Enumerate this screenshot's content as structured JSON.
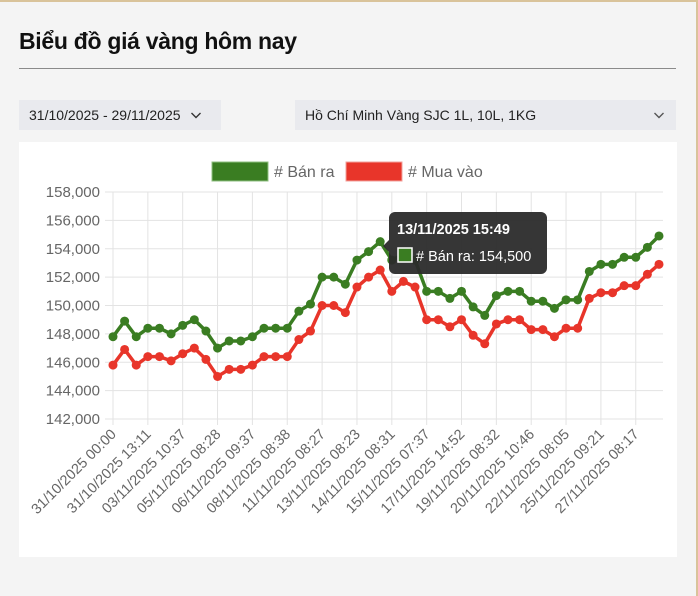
{
  "page": {
    "title": "Biểu đồ giá vàng hôm nay"
  },
  "filters": {
    "date_range": "31/10/2025 - 29/11/2025",
    "location_product": "Hồ Chí Minh Vàng SJC 1L, 10L, 1KG"
  },
  "icons": {
    "date_dropdown": "chevron-down-icon",
    "location_dropdown": "chevron-down-icon"
  },
  "colors": {
    "ban_ra": "#3a7d22",
    "mua_vao": "#e8352a",
    "tooltip_bg": "#2b2b2b",
    "grid": "#e3e3e3",
    "axis_text": "#666666"
  },
  "tooltip": {
    "title": "13/11/2025 15:49",
    "label": "# Bán ra: 154,500",
    "point_index": 23
  },
  "chart_data": {
    "type": "line",
    "title": "",
    "xlabel": "",
    "ylabel": "",
    "ylim": [
      142000,
      158000
    ],
    "y_ticks": [
      "158,000",
      "156,000",
      "154,000",
      "152,000",
      "150,000",
      "148,000",
      "146,000",
      "144,000",
      "142,000"
    ],
    "grid": true,
    "legend_position": "top",
    "x_tick_labels": [
      "31/10/2025 00:00",
      "31/10/2025 13:11",
      "03/11/2025 10:37",
      "05/11/2025 08:28",
      "06/11/2025 09:37",
      "08/11/2025 08:38",
      "11/11/2025 08:27",
      "13/11/2025 08:23",
      "14/11/2025 08:31",
      "15/11/2025 07:37",
      "17/11/2025 14:52",
      "19/11/2025 08:32",
      "20/11/2025 10:46",
      "22/11/2025 08:05",
      "25/11/2025 09:21",
      "27/11/2025 08:17"
    ],
    "x_tick_every": 3,
    "point_count": 48,
    "series": [
      {
        "name": "# Bán ra",
        "color": "#3a7d22",
        "values": [
          147800,
          148900,
          147800,
          148400,
          148400,
          148000,
          148600,
          149000,
          148200,
          147000,
          147500,
          147500,
          147800,
          148400,
          148400,
          148400,
          149600,
          150100,
          152000,
          152000,
          151500,
          153200,
          153800,
          154500,
          153200,
          153600,
          153200,
          151000,
          151000,
          150500,
          151000,
          149900,
          149300,
          150700,
          151000,
          151000,
          150300,
          150300,
          149800,
          150400,
          150400,
          152400,
          152900,
          152900,
          153400,
          153400,
          154100,
          154900
        ]
      },
      {
        "name": "# Mua vào",
        "color": "#e8352a",
        "values": [
          145800,
          146900,
          145800,
          146400,
          146400,
          146100,
          146600,
          147000,
          146200,
          145000,
          145500,
          145500,
          145800,
          146400,
          146400,
          146400,
          147600,
          148200,
          150000,
          150000,
          149500,
          151300,
          152000,
          152500,
          151000,
          151700,
          151300,
          149000,
          149000,
          148500,
          149000,
          147900,
          147300,
          148700,
          149000,
          149000,
          148300,
          148300,
          147800,
          148400,
          148400,
          150500,
          150900,
          150900,
          151400,
          151400,
          152200,
          152900
        ]
      }
    ]
  }
}
